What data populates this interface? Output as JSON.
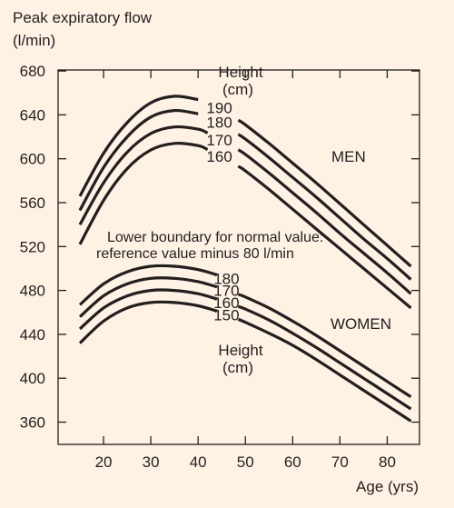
{
  "chart_data": {
    "type": "line",
    "title": "",
    "ylabel_lines": [
      "Peak expiratory flow",
      "(l/min)"
    ],
    "xlabel": "Age (yrs)",
    "xlim": [
      15,
      85
    ],
    "ylim": [
      350,
      690
    ],
    "x_ticks": [
      20,
      30,
      40,
      50,
      60,
      70,
      80
    ],
    "y_ticks": [
      360,
      400,
      440,
      480,
      520,
      560,
      600,
      640,
      680
    ],
    "grid": false,
    "groups": [
      {
        "name": "MEN",
        "height_label": [
          "Height",
          "(cm)"
        ],
        "series": [
          {
            "name": "190",
            "x": [
              15,
              20,
              25,
              30,
              35,
              40,
              45,
              50,
              55,
              60,
              65,
              70,
              75,
              80,
              85
            ],
            "y": [
              566,
              605,
              633,
              651,
              657,
              654,
              645,
              631,
              614,
              596,
              578,
              559,
              540,
              521,
              502
            ]
          },
          {
            "name": "180",
            "x": [
              15,
              20,
              25,
              30,
              35,
              40,
              45,
              50,
              55,
              60,
              65,
              70,
              75,
              80,
              85
            ],
            "y": [
              553,
              592,
              620,
              638,
              644,
              641,
              632,
              618,
              601,
              583,
              565,
              546,
              527,
              509,
              490
            ]
          },
          {
            "name": "170",
            "x": [
              15,
              20,
              25,
              30,
              35,
              40,
              45,
              50,
              55,
              60,
              65,
              70,
              75,
              80,
              85
            ],
            "y": [
              540,
              578,
              606,
              623,
              629,
              627,
              618,
              604,
              587,
              569,
              551,
              532,
              514,
              496,
              477
            ]
          },
          {
            "name": "160",
            "x": [
              15,
              20,
              25,
              30,
              35,
              40,
              45,
              50,
              55,
              60,
              65,
              70,
              75,
              80,
              85
            ],
            "y": [
              522,
              562,
              591,
              608,
              614,
              612,
              603,
              589,
              572,
              554,
              536,
              518,
              500,
              482,
              464
            ]
          }
        ]
      },
      {
        "name": "WOMEN",
        "height_label": [
          "Height",
          "(cm)"
        ],
        "series": [
          {
            "name": "180",
            "x": [
              15,
              20,
              25,
              30,
              35,
              40,
              45,
              50,
              55,
              60,
              65,
              70,
              75,
              80,
              85
            ],
            "y": [
              467,
              486,
              497,
              502,
              502,
              499,
              493,
              485,
              475,
              463,
              450,
              436,
              422,
              408,
              393
            ]
          },
          {
            "name": "170",
            "x": [
              15,
              20,
              25,
              30,
              35,
              40,
              45,
              50,
              55,
              60,
              65,
              70,
              75,
              80,
              85
            ],
            "y": [
              456,
              475,
              486,
              491,
              491,
              488,
              482,
              474,
              464,
              452,
              439,
              425,
              411,
              397,
              383
            ]
          },
          {
            "name": "160",
            "x": [
              15,
              20,
              25,
              30,
              35,
              40,
              45,
              50,
              55,
              60,
              65,
              70,
              75,
              80,
              85
            ],
            "y": [
              445,
              464,
              475,
              480,
              480,
              477,
              471,
              463,
              453,
              441,
              428,
              414,
              400,
              386,
              372
            ]
          },
          {
            "name": "150",
            "x": [
              15,
              20,
              25,
              30,
              35,
              40,
              45,
              50,
              55,
              60,
              65,
              70,
              75,
              80,
              85
            ],
            "y": [
              432,
              452,
              464,
              469,
              469,
              466,
              460,
              451,
              441,
              430,
              417,
              403,
              389,
              375,
              361
            ]
          }
        ]
      }
    ],
    "annotation_lines": [
      "Lower boundary for normal value:",
      "reference value minus 80 l/min"
    ]
  }
}
